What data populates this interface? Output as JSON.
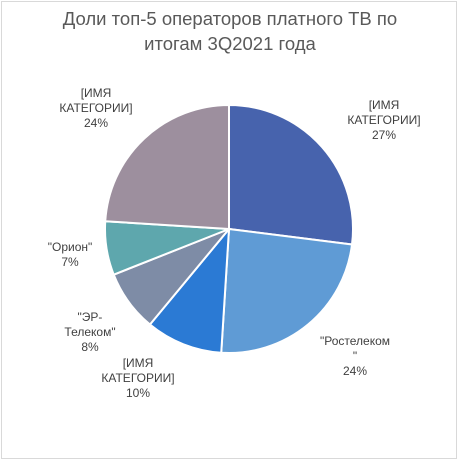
{
  "chart_data": {
    "type": "pie",
    "title_lines": [
      "Доли топ-5 операторов платного ТВ по",
      "итогам  3Q2021 года"
    ],
    "slices": [
      {
        "label_lines": [
          "[ИМЯ",
          "КАТЕГОРИИ]"
        ],
        "value_text": "27%",
        "value": 27,
        "color": "#4763ad"
      },
      {
        "label_lines": [
          "\"Ростелеком",
          "\""
        ],
        "value_text": "24%",
        "value": 24,
        "color": "#5f9bd5"
      },
      {
        "label_lines": [
          "[ИМЯ",
          "КАТЕГОРИИ]"
        ],
        "value_text": "10%",
        "value": 10,
        "color": "#2b7ad4"
      },
      {
        "label_lines": [
          "\"ЭР-",
          "Телеком\""
        ],
        "value_text": "8%",
        "value": 8,
        "color": "#7e8ca6"
      },
      {
        "label_lines": [
          "\"Орион\""
        ],
        "value_text": "7%",
        "value": 7,
        "color": "#5ea7ad"
      },
      {
        "label_lines": [
          "[ИМЯ",
          "КАТЕГОРИИ]"
        ],
        "value_text": "24%",
        "value": 24,
        "color": "#9d8f9e"
      }
    ],
    "start_angle": "12 o'clock",
    "direction": "clockwise",
    "legend": "none",
    "slice_border_color": "#ffffff"
  }
}
